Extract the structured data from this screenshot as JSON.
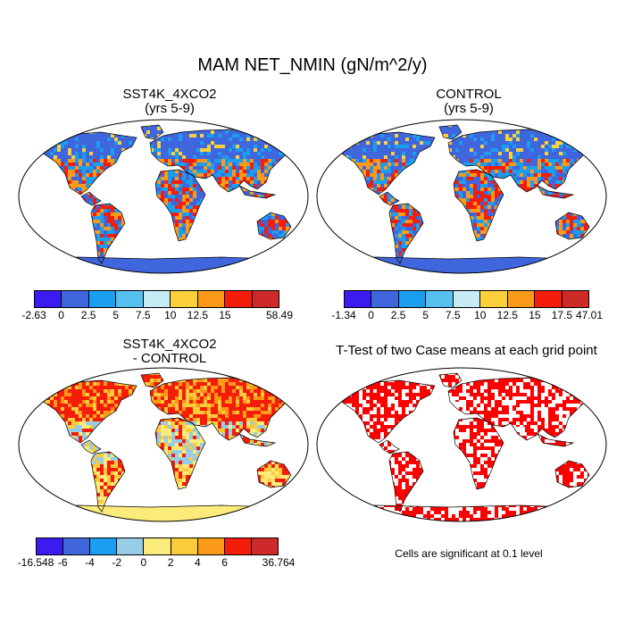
{
  "title": "MAM NET_NMIN (gN/m^2/y)",
  "panels": [
    {
      "id": "sst4k",
      "title": "SST4K_4XCO2",
      "subtitle": "(yrs 5-9)",
      "colorbar": {
        "colors": [
          "#3a1cf0",
          "#3f66dd",
          "#1a9ff0",
          "#55bfee",
          "#c6ebf4",
          "#fbd03a",
          "#fb9a18",
          "#f41c0a",
          "#cf2a2a"
        ],
        "tick_labels": [
          "-2.63",
          "0",
          "2.5",
          "5",
          "7.5",
          "10",
          "12.5",
          "15",
          "58.49"
        ]
      }
    },
    {
      "id": "control",
      "title": "CONTROL",
      "subtitle": "(yrs 5-9)",
      "colorbar": {
        "colors": [
          "#3a1cf0",
          "#3f66dd",
          "#1a9ff0",
          "#55bfee",
          "#c6ebf4",
          "#fbd03a",
          "#fb9a18",
          "#f41c0a",
          "#cf2a2a"
        ],
        "tick_labels": [
          "-1.34",
          "0",
          "2.5",
          "5",
          "7.5",
          "10",
          "12.5",
          "15",
          "17.5",
          "47.01"
        ]
      }
    },
    {
      "id": "diff",
      "title": "SST4K_4XCO2",
      "subtitle": "- CONTROL",
      "colorbar": {
        "colors": [
          "#3a1cf0",
          "#3f66dd",
          "#1a9ff0",
          "#96cce6",
          "#fbeb7a",
          "#fbcb3a",
          "#fb9a18",
          "#f41c0a",
          "#cf2a2a"
        ],
        "tick_labels": [
          "-16.548",
          "-6",
          "-4",
          "-2",
          "0",
          "2",
          "4",
          "6",
          "36.764"
        ]
      }
    },
    {
      "id": "ttest",
      "title": "T-Test of two Case means at each grid point",
      "note": "Cells are significant at 0.1 level"
    }
  ]
}
